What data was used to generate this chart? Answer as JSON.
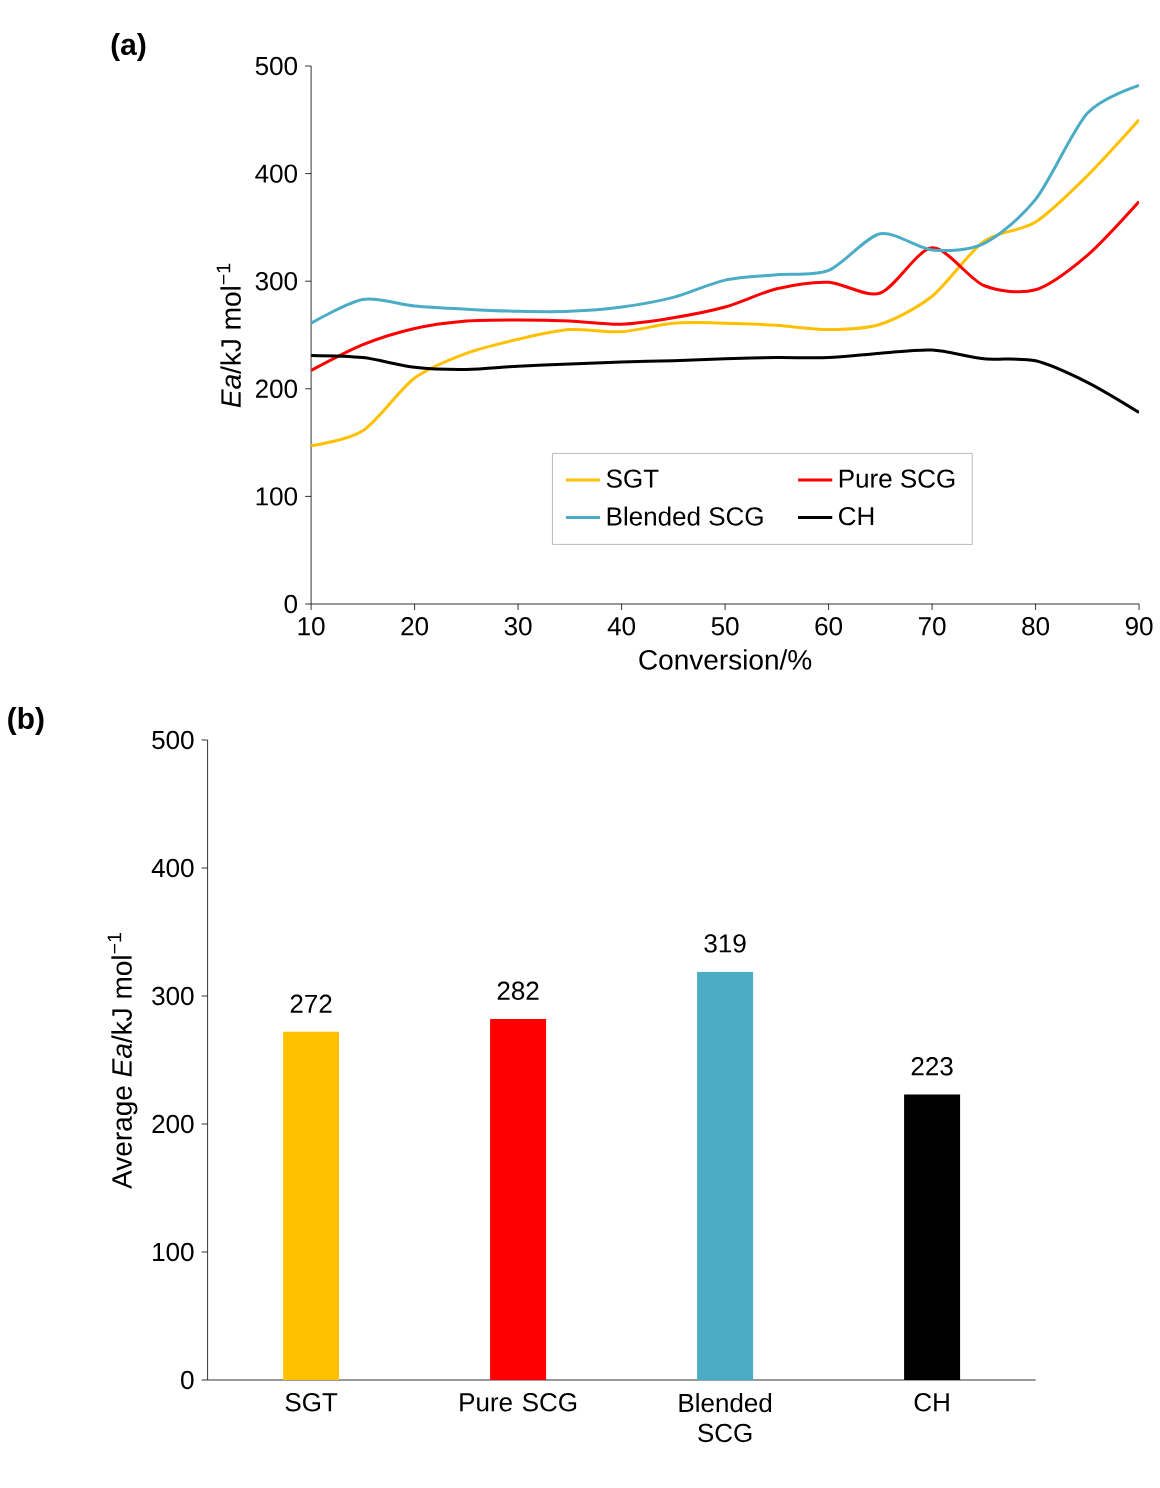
{
  "chart_data": [
    {
      "type": "line",
      "title": "(a)",
      "xlabel": "Conversion/%",
      "ylabel": "*Ea*/kJ mol$^{−1}$",
      "x": [
        10,
        15,
        20,
        25,
        30,
        35,
        40,
        45,
        50,
        55,
        60,
        65,
        70,
        75,
        80,
        85,
        90
      ],
      "series": [
        {
          "name": "SGT",
          "color": "#ffc000",
          "values": [
            147,
            161,
            210,
            233,
            246,
            255,
            253,
            261,
            261,
            259,
            255,
            260,
            286,
            337,
            355,
            398,
            450
          ]
        },
        {
          "name": "Pure SCG",
          "color": "#ff0000",
          "values": [
            217,
            241,
            256,
            263,
            264,
            263,
            260,
            266,
            276,
            293,
            299,
            289,
            331,
            296,
            292,
            324,
            374
          ]
        },
        {
          "name": "Blended SCG",
          "color": "#4bacc6",
          "values": [
            261,
            283,
            277,
            274,
            272,
            272,
            276,
            285,
            301,
            306,
            310,
            344,
            329,
            335,
            376,
            456,
            482
          ]
        },
        {
          "name": "CH",
          "color": "#000000",
          "values": [
            231,
            229,
            220,
            218,
            221,
            223,
            225,
            226,
            228,
            229,
            229,
            233,
            236,
            228,
            226,
            206,
            178
          ]
        }
      ],
      "xlim": [
        10,
        90
      ],
      "ylim": [
        0,
        500
      ],
      "xticks": [
        10,
        20,
        30,
        40,
        50,
        60,
        70,
        80,
        90
      ],
      "yticks": [
        0,
        100,
        200,
        300,
        400,
        500
      ],
      "legend": "bottom"
    },
    {
      "type": "bar",
      "title": "(b)",
      "ylabel": "Average *Ea*/kJ mol$^{−1}$",
      "categories": [
        "SGT",
        "Pure SCG",
        "Blended SCG",
        "CH"
      ],
      "values": [
        272,
        282,
        319,
        223
      ],
      "colors": [
        "#ffc000",
        "#ff0000",
        "#4bacc6",
        "#000000"
      ],
      "ylim": [
        0,
        500
      ],
      "yticks": [
        0,
        100,
        200,
        300,
        400,
        500
      ],
      "data_labels": true
    }
  ]
}
